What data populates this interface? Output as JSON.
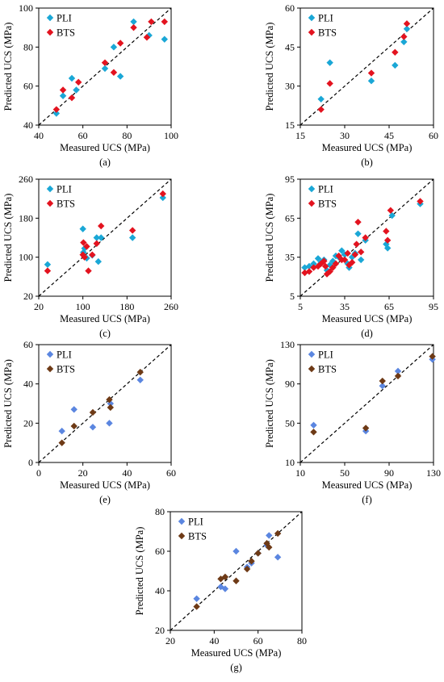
{
  "figure": {
    "colors": {
      "cyan": "#1aa7d6",
      "red": "#e3131f",
      "blue": "#5b86e0",
      "brown": "#6e3a16"
    },
    "panels": [
      {
        "caption": "(a)",
        "x_label": "Measured UCS (MPa)",
        "y_label": "Predicted UCS (MPa)"
      },
      {
        "caption": "(b)",
        "x_label": "Measured UCS (MPa)",
        "y_label": "Predicted UCS (MPa)"
      },
      {
        "caption": "(c)",
        "x_label": "Measured UCS (MPa)",
        "y_label": "Predicted UCS (MPa)"
      },
      {
        "caption": "(d)",
        "x_label": "Measured UCS (MPa)",
        "y_label": "Predicted UCS (MPa)"
      },
      {
        "caption": "(e)",
        "x_label": "Measured UCS (MPa)",
        "y_label": "Predicted UCS (MPa)"
      },
      {
        "caption": "(f)",
        "x_label": "Measured UCS (MPa)",
        "y_label": "Predicted UCS (MPa)"
      },
      {
        "caption": "(g)",
        "x_label": "Measured UCS (MPa)",
        "y_label": "Predicted UCS (MPa)"
      }
    ]
  },
  "chart_data": [
    {
      "type": "scatter",
      "panel": "(a)",
      "xlabel": "Measured UCS (MPa)",
      "ylabel": "Predicted UCS (MPa)",
      "xlim": [
        40,
        100
      ],
      "ylim": [
        40,
        100
      ],
      "xticks": [
        "40",
        "60",
        "80",
        "100"
      ],
      "yticks": [
        "40",
        "60",
        "80",
        "100"
      ],
      "reference_line": "y = x",
      "legend_position": "top-left",
      "series": [
        {
          "name": "PLI",
          "color": "#1aa7d6",
          "points": [
            [
              48,
              46
            ],
            [
              51,
              55
            ],
            [
              55,
              64
            ],
            [
              57,
              58
            ],
            [
              70,
              69
            ],
            [
              74,
              80
            ],
            [
              77,
              65
            ],
            [
              83,
              93
            ],
            [
              90,
              86
            ],
            [
              97,
              84
            ]
          ]
        },
        {
          "name": "BTS",
          "color": "#e3131f",
          "points": [
            [
              48,
              48
            ],
            [
              51,
              58
            ],
            [
              55,
              54
            ],
            [
              58,
              62
            ],
            [
              70,
              72
            ],
            [
              74,
              67
            ],
            [
              77,
              82
            ],
            [
              83,
              90
            ],
            [
              89,
              85
            ],
            [
              91,
              93
            ],
            [
              97,
              93
            ]
          ]
        }
      ]
    },
    {
      "type": "scatter",
      "panel": "(b)",
      "xlabel": "Measured UCS (MPa)",
      "ylabel": "Predicted UCS (MPa)",
      "xlim": [
        15,
        60
      ],
      "ylim": [
        15,
        60
      ],
      "xticks": [
        "15",
        "30",
        "45",
        "60"
      ],
      "yticks": [
        "15",
        "30",
        "45",
        "60"
      ],
      "reference_line": "y = x",
      "legend_position": "top-left",
      "series": [
        {
          "name": "PLI",
          "color": "#1aa7d6",
          "points": [
            [
              22,
              25
            ],
            [
              25,
              39
            ],
            [
              39,
              32
            ],
            [
              47,
              38
            ],
            [
              50,
              47
            ],
            [
              51,
              52
            ]
          ]
        },
        {
          "name": "BTS",
          "color": "#e3131f",
          "points": [
            [
              22,
              21
            ],
            [
              25,
              31
            ],
            [
              39,
              35
            ],
            [
              47,
              43
            ],
            [
              50,
              49
            ],
            [
              51,
              54
            ]
          ]
        }
      ]
    },
    {
      "type": "scatter",
      "panel": "(c)",
      "xlabel": "Measured UCS (MPa)",
      "ylabel": "Predicted UCS (MPa)",
      "xlim": [
        20,
        260
      ],
      "ylim": [
        20,
        260
      ],
      "xticks": [
        "20",
        "100",
        "180",
        "260"
      ],
      "yticks": [
        "20",
        "100",
        "180",
        "260"
      ],
      "reference_line": "y = x",
      "legend_position": "top-left",
      "series": [
        {
          "name": "PLI",
          "color": "#1aa7d6",
          "points": [
            [
              36,
              85
            ],
            [
              100,
              158
            ],
            [
              101,
              110
            ],
            [
              103,
              118
            ],
            [
              107,
              98
            ],
            [
              117,
              104
            ],
            [
              125,
              140
            ],
            [
              128,
              91
            ],
            [
              133,
              140
            ],
            [
              190,
              140
            ],
            [
              245,
              222
            ]
          ]
        },
        {
          "name": "BTS",
          "color": "#e3131f",
          "points": [
            [
              36,
              72
            ],
            [
              100,
              105
            ],
            [
              101,
              130
            ],
            [
              103,
              100
            ],
            [
              107,
              122
            ],
            [
              110,
              72
            ],
            [
              117,
              105
            ],
            [
              125,
              128
            ],
            [
              133,
              164
            ],
            [
              190,
              155
            ],
            [
              245,
              230
            ]
          ]
        }
      ]
    },
    {
      "type": "scatter",
      "panel": "(d)",
      "xlabel": "Measured UCS (MPa)",
      "ylabel": "Predicted UCS (MPa)",
      "xlim": [
        5,
        95
      ],
      "ylim": [
        5,
        95
      ],
      "xticks": [
        "5",
        "35",
        "65",
        "95"
      ],
      "yticks": [
        "5",
        "35",
        "65",
        "95"
      ],
      "reference_line": "y = x",
      "legend_position": "top-left",
      "series": [
        {
          "name": "PLI",
          "color": "#1aa7d6",
          "points": [
            [
              8,
              27
            ],
            [
              11,
              28
            ],
            [
              14,
              30
            ],
            [
              17,
              34
            ],
            [
              19,
              31
            ],
            [
              21,
              33
            ],
            [
              23,
              25
            ],
            [
              25,
              29
            ],
            [
              27,
              32
            ],
            [
              29,
              36
            ],
            [
              31,
              35
            ],
            [
              33,
              40
            ],
            [
              35,
              37
            ],
            [
              37,
              30
            ],
            [
              38,
              27
            ],
            [
              40,
              35
            ],
            [
              42,
              38
            ],
            [
              44,
              53
            ],
            [
              46,
              33
            ],
            [
              49,
              48
            ],
            [
              63,
              45
            ],
            [
              64,
              42
            ],
            [
              67,
              67
            ],
            [
              86,
              76
            ]
          ]
        },
        {
          "name": "BTS",
          "color": "#e3131f",
          "points": [
            [
              8,
              23
            ],
            [
              11,
              24
            ],
            [
              14,
              27
            ],
            [
              17,
              28
            ],
            [
              19,
              30
            ],
            [
              21,
              32
            ],
            [
              22,
              28
            ],
            [
              23,
              22
            ],
            [
              25,
              24
            ],
            [
              27,
              27
            ],
            [
              29,
              30
            ],
            [
              31,
              36
            ],
            [
              33,
              33
            ],
            [
              35,
              33
            ],
            [
              37,
              38
            ],
            [
              38,
              29
            ],
            [
              40,
              31
            ],
            [
              42,
              37
            ],
            [
              43,
              45
            ],
            [
              44,
              62
            ],
            [
              46,
              39
            ],
            [
              49,
              50
            ],
            [
              63,
              55
            ],
            [
              64,
              48
            ],
            [
              66,
              71
            ],
            [
              86,
              78
            ]
          ]
        }
      ]
    },
    {
      "type": "scatter",
      "panel": "(e)",
      "xlabel": "Measured UCS (MPa)",
      "ylabel": "Predicted UCS (MPa)",
      "xlim": [
        0,
        60
      ],
      "ylim": [
        0,
        60
      ],
      "xticks": [
        "0",
        "20",
        "40",
        "60"
      ],
      "yticks": [
        "0",
        "20",
        "40",
        "60"
      ],
      "reference_line": "y = x",
      "legend_position": "top-left",
      "series": [
        {
          "name": "PLI",
          "color": "#5b86e0",
          "points": [
            [
              10.5,
              16
            ],
            [
              16,
              27
            ],
            [
              24.5,
              18
            ],
            [
              32,
              20
            ],
            [
              32.5,
              30
            ],
            [
              46,
              42
            ]
          ]
        },
        {
          "name": "BTS",
          "color": "#6e3a16",
          "points": [
            [
              10.5,
              10
            ],
            [
              16,
              18.5
            ],
            [
              24.5,
              25.5
            ],
            [
              32,
              32
            ],
            [
              32.5,
              28
            ],
            [
              46,
              46
            ]
          ]
        }
      ]
    },
    {
      "type": "scatter",
      "panel": "(f)",
      "xlabel": "Measured UCS (MPa)",
      "ylabel": "Predicted UCS (MPa)",
      "xlim": [
        10,
        130
      ],
      "ylim": [
        10,
        130
      ],
      "xticks": [
        "10",
        "50",
        "90",
        "130"
      ],
      "yticks": [
        "10",
        "50",
        "90",
        "130"
      ],
      "reference_line": "y = x",
      "legend_position": "top-left",
      "series": [
        {
          "name": "PLI",
          "color": "#5b86e0",
          "points": [
            [
              22,
              48
            ],
            [
              69,
              42
            ],
            [
              84,
              88
            ],
            [
              98,
              103
            ],
            [
              129,
              115
            ]
          ]
        },
        {
          "name": "BTS",
          "color": "#6e3a16",
          "points": [
            [
              22,
              41
            ],
            [
              69,
              45
            ],
            [
              84,
              93
            ],
            [
              98,
              98
            ],
            [
              129,
              118
            ]
          ]
        }
      ]
    },
    {
      "type": "scatter",
      "panel": "(g)",
      "xlabel": "Measured UCS (MPa)",
      "ylabel": "Predicted UCS (MPa)",
      "xlim": [
        20,
        80
      ],
      "ylim": [
        20,
        80
      ],
      "xticks": [
        "20",
        "40",
        "60",
        "80"
      ],
      "yticks": [
        "20",
        "40",
        "60",
        "80"
      ],
      "reference_line": "y = x",
      "legend_position": "top-left",
      "series": [
        {
          "name": "PLI",
          "color": "#5b86e0",
          "points": [
            [
              32,
              36
            ],
            [
              43,
              42
            ],
            [
              45,
              41
            ],
            [
              50,
              60
            ],
            [
              55,
              52
            ],
            [
              57,
              54
            ],
            [
              60,
              59
            ],
            [
              64,
              63
            ],
            [
              65,
              68
            ],
            [
              69,
              57
            ]
          ]
        },
        {
          "name": "BTS",
          "color": "#6e3a16",
          "points": [
            [
              32,
              32
            ],
            [
              43,
              46
            ],
            [
              45,
              47
            ],
            [
              50,
              45
            ],
            [
              55,
              51
            ],
            [
              57,
              55
            ],
            [
              60,
              59
            ],
            [
              64,
              64
            ],
            [
              65,
              62
            ],
            [
              69,
              69
            ]
          ]
        }
      ]
    }
  ]
}
